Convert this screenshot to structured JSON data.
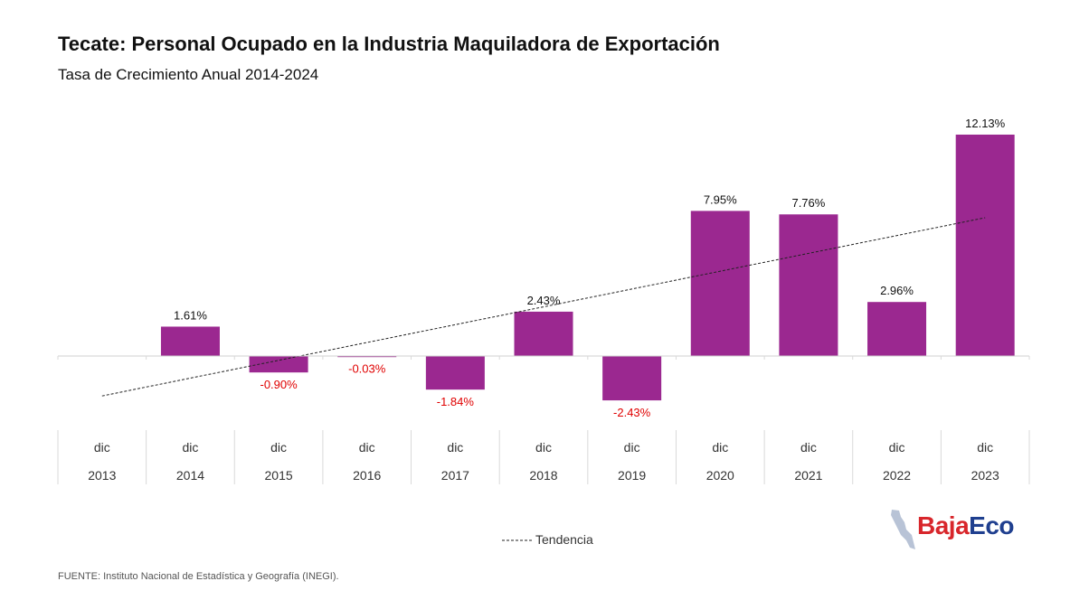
{
  "title": "Tecate: Personal Ocupado en la Industria Maquiladora de Exportación",
  "subtitle": "Tasa de Crecimiento Anual 2014-2024",
  "source": "FUENTE: Instituto Nacional de Estadística y Geografía (INEGI).",
  "logo": {
    "part1": "Baja",
    "part2": "Eco"
  },
  "colors": {
    "bar": "#9b2890",
    "positive_label": "#111111",
    "negative_label": "#e00000",
    "trend": "#222222"
  },
  "chart_data": {
    "type": "bar",
    "categories_month": [
      "dic",
      "dic",
      "dic",
      "dic",
      "dic",
      "dic",
      "dic",
      "dic",
      "dic",
      "dic",
      "dic"
    ],
    "categories_year": [
      "2013",
      "2014",
      "2015",
      "2016",
      "2017",
      "2018",
      "2019",
      "2020",
      "2021",
      "2022",
      "2023"
    ],
    "values": [
      null,
      1.61,
      -0.9,
      -0.03,
      -1.84,
      2.43,
      -2.43,
      7.95,
      7.76,
      2.96,
      12.13
    ],
    "data_labels": [
      "",
      "1.61%",
      "-0.90%",
      "-0.03%",
      "-1.84%",
      "2.43%",
      "-2.43%",
      "7.95%",
      "7.76%",
      "2.96%",
      "12.13%"
    ],
    "trendline": {
      "name": "Tendencia",
      "style": "dashed",
      "type": "linear"
    },
    "legend": {
      "position": "bottom",
      "entries": [
        "Tendencia"
      ]
    },
    "grid": false
  }
}
